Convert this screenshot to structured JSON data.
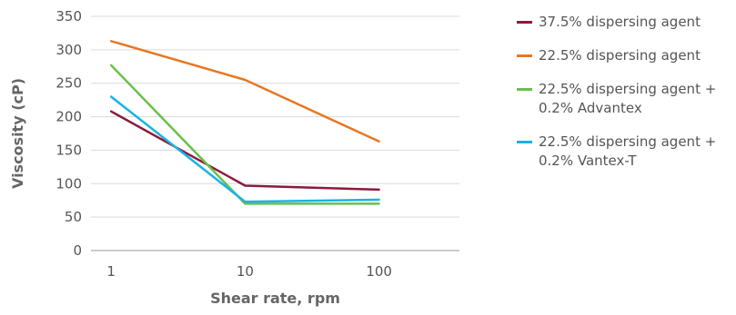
{
  "chart_data": {
    "type": "line",
    "title": "",
    "xlabel": "Shear rate, rpm",
    "ylabel": "Viscosity (cP)",
    "x_scale": "log",
    "x": [
      1,
      10,
      100
    ],
    "xticks": [
      "1",
      "10",
      "100"
    ],
    "ylim": [
      0,
      350
    ],
    "yticks": [
      "0",
      "50",
      "100",
      "150",
      "200",
      "250",
      "300",
      "350"
    ],
    "grid": "horizontal",
    "legend_position": "right",
    "series": [
      {
        "name": "37.5% dispersing agent",
        "name_lines": [
          "37.5% dispersing agent"
        ],
        "color": "#8b1a3c",
        "values": [
          208,
          97,
          91
        ]
      },
      {
        "name": "22.5% dispersing agent",
        "name_lines": [
          "22.5% dispersing agent"
        ],
        "color": "#e87722",
        "values": [
          313,
          255,
          163
        ]
      },
      {
        "name": "22.5% dispersing agent + 0.2% Advantex",
        "name_lines": [
          "22.5% dispersing agent +",
          "0.2% Advantex"
        ],
        "color": "#6abf4b",
        "values": [
          277,
          70,
          70
        ]
      },
      {
        "name": "22.5% dispersing agent + 0.2% Vantex-T",
        "name_lines": [
          "22.5% dispersing agent +",
          "0.2% Vantex-T"
        ],
        "color": "#1ab3e6",
        "values": [
          230,
          73,
          76
        ]
      }
    ]
  }
}
